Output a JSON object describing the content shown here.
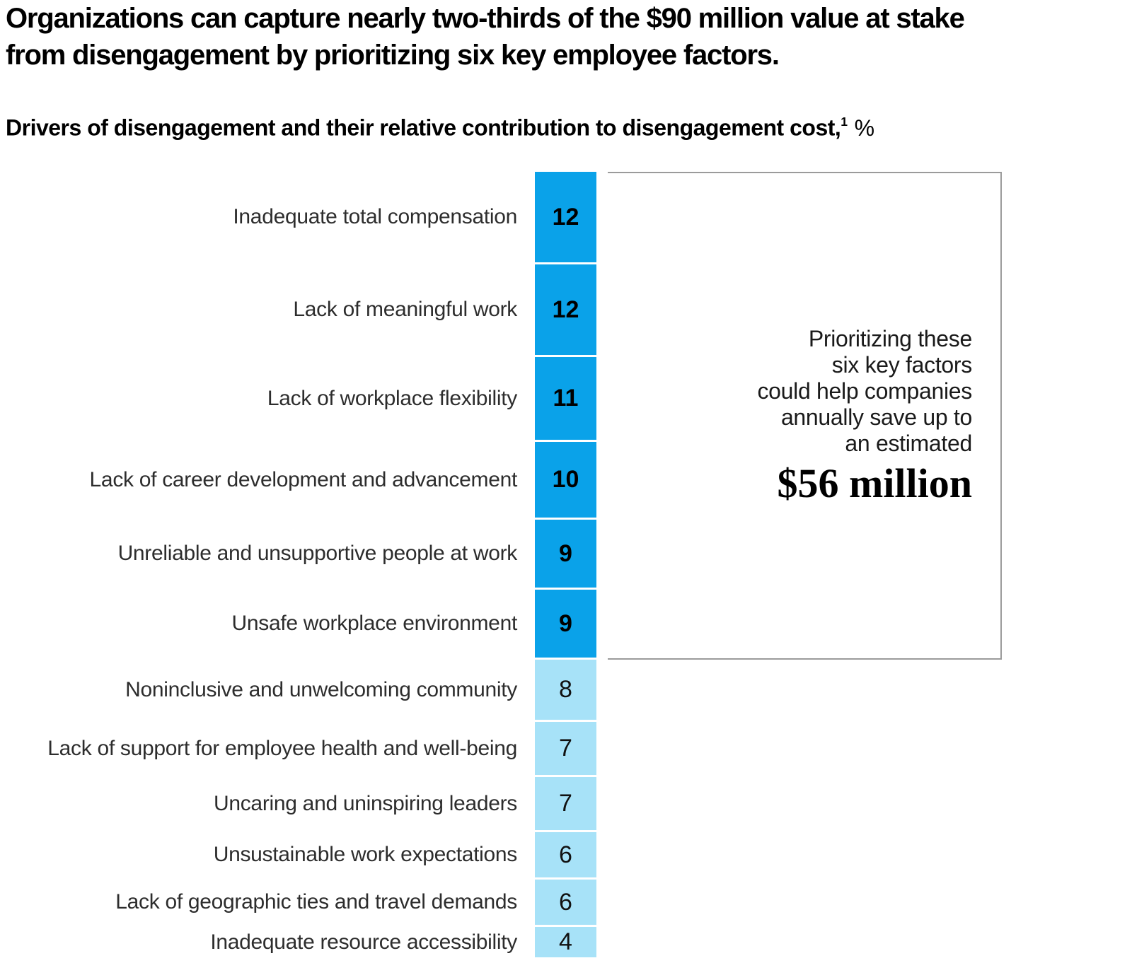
{
  "chart_data": {
    "type": "bar",
    "layout": "single-stacked-vertical-column",
    "title": "Organizations can capture nearly two-thirds of the $90 million value at stake\nfrom disengagement by prioritizing six key employee factors.",
    "subtitle": "Drivers of disengagement and their relative contribution to disengagement cost,",
    "footnote_marker": "1",
    "unit": "%",
    "categories": [
      "Inadequate total compensation",
      "Lack of meaningful work",
      "Lack of workplace flexibility",
      "Lack of career development and advancement",
      "Unreliable and unsupportive people at work",
      "Unsafe workplace environment",
      "Noninclusive and unwelcoming community",
      "Lack of support for employee health and well-being",
      "Uncaring and uninspiring leaders",
      "Unsustainable work expectations",
      "Lack of geographic ties and travel demands",
      "Inadequate resource accessibility"
    ],
    "values": [
      12,
      12,
      11,
      10,
      9,
      9,
      8,
      7,
      7,
      6,
      6,
      4
    ],
    "emphasized_segments": 6,
    "colors": {
      "bar_emphasis": "#0AA2E9",
      "bar_muted": "#A7E2F8",
      "annotation_border": "#9b9b9b"
    },
    "legend": "none",
    "axes": "none",
    "annotation": {
      "text": "Prioritizing these\nsix key factors\ncould help companies\nannually save up to\nan estimated",
      "amount": "$56 million"
    }
  }
}
